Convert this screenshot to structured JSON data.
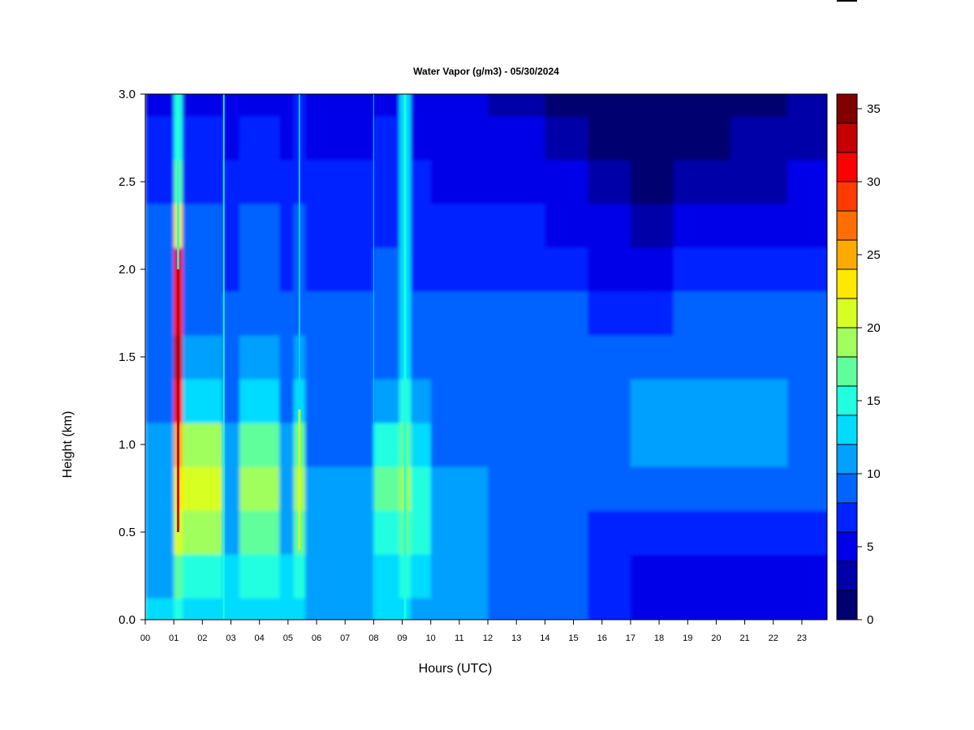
{
  "chart_data": {
    "type": "heatmap",
    "title": "Water Vapor (g/m3) - 05/30/2024",
    "xlabel": "Hours (UTC)",
    "ylabel": "Height (km)",
    "xlim": [
      0,
      24
    ],
    "ylim": [
      0,
      3
    ],
    "x_ticks": [
      "00",
      "01",
      "02",
      "03",
      "04",
      "05",
      "06",
      "07",
      "08",
      "09",
      "10",
      "11",
      "12",
      "13",
      "14",
      "15",
      "16",
      "17",
      "18",
      "19",
      "20",
      "21",
      "22",
      "23"
    ],
    "y_ticks": [
      "0.0",
      "0.5",
      "1.0",
      "1.5",
      "2.0",
      "2.5",
      "3.0"
    ],
    "colorbar": {
      "range": [
        0,
        36
      ],
      "ticks": [
        "0",
        "5",
        "10",
        "15",
        "20",
        "25",
        "30",
        "35"
      ],
      "levels": [
        0,
        2,
        4,
        6,
        8,
        10,
        12,
        14,
        16,
        18,
        20,
        22,
        24,
        26,
        28,
        30,
        32,
        34,
        36
      ],
      "colors": [
        "#000070",
        "#0000A8",
        "#0000E8",
        "#0024FF",
        "#0064FF",
        "#00A0FF",
        "#00DCFF",
        "#20FFE0",
        "#60FF9C",
        "#A0FF5C",
        "#D8FF24",
        "#FFE800",
        "#FFAA00",
        "#FF6E00",
        "#FF3A00",
        "#FF0000",
        "#C40000",
        "#800000"
      ]
    },
    "heights_km": [
      0.0,
      0.25,
      0.5,
      0.75,
      1.0,
      1.25,
      1.5,
      1.75,
      2.0,
      2.25,
      2.5,
      2.75,
      3.0
    ],
    "segments": [
      {
        "hours": [
          0.0,
          1.0
        ],
        "values_by_height": [
          13,
          11,
          11,
          11,
          11,
          9,
          9,
          9,
          9,
          9,
          7,
          7,
          5
        ]
      },
      {
        "hours": [
          1.0,
          1.3
        ],
        "values_by_height": [
          14,
          17,
          20,
          22,
          24,
          30,
          32,
          30,
          30,
          22,
          16,
          14,
          14
        ]
      },
      {
        "hours": [
          1.3,
          2.7
        ],
        "values_by_height": [
          13,
          15,
          19,
          20,
          19,
          13,
          11,
          9,
          9,
          9,
          7,
          7,
          5
        ]
      },
      {
        "hours": [
          2.7,
          3.3
        ],
        "values_by_height": [
          13,
          13,
          11,
          11,
          11,
          9,
          9,
          9,
          7,
          7,
          7,
          5,
          5
        ]
      },
      {
        "hours": [
          3.3,
          4.7
        ],
        "values_by_height": [
          13,
          15,
          17,
          19,
          17,
          13,
          11,
          9,
          9,
          9,
          7,
          7,
          5
        ]
      },
      {
        "hours": [
          4.7,
          5.2
        ],
        "values_by_height": [
          13,
          13,
          11,
          11,
          11,
          9,
          9,
          9,
          7,
          7,
          7,
          5,
          5
        ]
      },
      {
        "hours": [
          5.2,
          5.6
        ],
        "values_by_height": [
          13,
          15,
          17,
          19,
          17,
          13,
          11,
          9,
          9,
          9,
          7,
          7,
          7
        ]
      },
      {
        "hours": [
          5.6,
          8.0
        ],
        "values_by_height": [
          11,
          11,
          11,
          11,
          9,
          9,
          9,
          9,
          7,
          7,
          7,
          5,
          5
        ]
      },
      {
        "hours": [
          8.0,
          8.9
        ],
        "values_by_height": [
          13,
          13,
          15,
          17,
          15,
          11,
          9,
          9,
          9,
          7,
          7,
          7,
          5
        ]
      },
      {
        "hours": [
          8.9,
          9.3
        ],
        "values_by_height": [
          13,
          15,
          17,
          19,
          17,
          15,
          13,
          13,
          13,
          13,
          13,
          13,
          13
        ]
      },
      {
        "hours": [
          9.3,
          10.0
        ],
        "values_by_height": [
          11,
          13,
          15,
          15,
          13,
          11,
          9,
          9,
          7,
          7,
          7,
          5,
          5
        ]
      },
      {
        "hours": [
          10.0,
          12.0
        ],
        "values_by_height": [
          11,
          11,
          11,
          11,
          9,
          9,
          9,
          9,
          7,
          7,
          5,
          5,
          5
        ]
      },
      {
        "hours": [
          12.0,
          14.0
        ],
        "values_by_height": [
          9,
          9,
          9,
          9,
          9,
          9,
          9,
          9,
          7,
          7,
          5,
          5,
          3
        ]
      },
      {
        "hours": [
          14.0,
          15.5
        ],
        "values_by_height": [
          9,
          9,
          9,
          9,
          9,
          9,
          9,
          9,
          7,
          5,
          5,
          3,
          1
        ]
      },
      {
        "hours": [
          15.5,
          17.0
        ],
        "values_by_height": [
          7,
          7,
          7,
          9,
          9,
          9,
          9,
          7,
          5,
          5,
          3,
          1,
          1
        ]
      },
      {
        "hours": [
          17.0,
          18.5
        ],
        "values_by_height": [
          5,
          5,
          7,
          9,
          11,
          11,
          9,
          7,
          5,
          3,
          1,
          1,
          1
        ]
      },
      {
        "hours": [
          18.5,
          20.5
        ],
        "values_by_height": [
          5,
          5,
          7,
          9,
          11,
          11,
          9,
          9,
          7,
          5,
          3,
          1,
          1
        ]
      },
      {
        "hours": [
          20.5,
          22.5
        ],
        "values_by_height": [
          5,
          5,
          7,
          9,
          11,
          11,
          9,
          9,
          7,
          5,
          3,
          3,
          1
        ]
      },
      {
        "hours": [
          22.5,
          24.0
        ],
        "values_by_height": [
          5,
          5,
          7,
          9,
          9,
          9,
          9,
          9,
          7,
          5,
          5,
          3,
          3
        ]
      }
    ],
    "grid": false,
    "legend": "colorbar-right"
  }
}
